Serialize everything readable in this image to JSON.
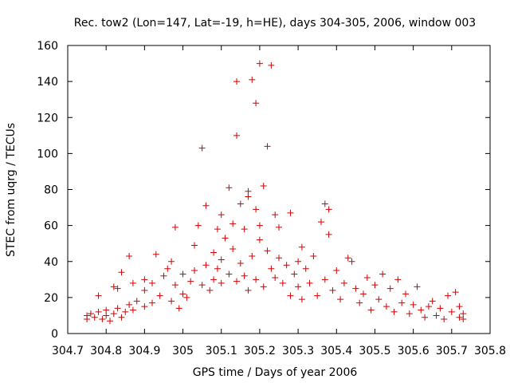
{
  "chart_data": {
    "type": "scatter",
    "title": "Rec. tow2 (Lon=147, Lat=-19, h=HE), days 304-305, 2006, window 003",
    "xlabel": "GPS time / Days of year 2006",
    "ylabel": "STEC from uqrg / TECUs",
    "xlim": [
      304.7,
      305.8
    ],
    "ylim": [
      0,
      160
    ],
    "xticks": [
      304.7,
      304.8,
      304.9,
      305.0,
      305.1,
      305.2,
      305.3,
      305.4,
      305.5,
      305.6,
      305.7,
      305.8
    ],
    "xtick_labels": [
      "304.7",
      "304.8",
      "304.9",
      "305",
      "305.1",
      "305.2",
      "305.3",
      "305.4",
      "305.5",
      "305.6",
      "305.7",
      "305.8"
    ],
    "yticks": [
      0,
      20,
      40,
      60,
      80,
      100,
      120,
      140,
      160
    ],
    "ytick_labels": [
      "0",
      "20",
      "40",
      "60",
      "80",
      "100",
      "120",
      "140",
      "160"
    ],
    "grid": false,
    "marker": "+",
    "marker_color": "#d40000",
    "series": [
      {
        "name": "STEC",
        "points": [
          [
            304.75,
            8
          ],
          [
            304.75,
            10
          ],
          [
            304.76,
            11
          ],
          [
            304.77,
            9
          ],
          [
            304.78,
            12
          ],
          [
            304.79,
            8
          ],
          [
            304.8,
            10
          ],
          [
            304.8,
            13
          ],
          [
            304.81,
            7
          ],
          [
            304.82,
            11
          ],
          [
            304.83,
            14
          ],
          [
            304.84,
            9
          ],
          [
            304.85,
            12
          ],
          [
            304.86,
            16
          ],
          [
            304.87,
            13
          ],
          [
            304.88,
            18
          ],
          [
            304.78,
            21
          ],
          [
            304.82,
            26
          ],
          [
            304.84,
            34
          ],
          [
            304.86,
            43
          ],
          [
            304.83,
            25
          ],
          [
            304.87,
            28
          ],
          [
            304.9,
            15
          ],
          [
            304.9,
            24
          ],
          [
            304.9,
            30
          ],
          [
            304.92,
            17
          ],
          [
            304.92,
            28
          ],
          [
            304.93,
            44
          ],
          [
            304.94,
            21
          ],
          [
            304.95,
            32
          ],
          [
            304.96,
            36
          ],
          [
            304.97,
            18
          ],
          [
            304.97,
            40
          ],
          [
            304.98,
            27
          ],
          [
            304.98,
            59
          ],
          [
            304.99,
            14
          ],
          [
            305.0,
            22
          ],
          [
            305.0,
            33
          ],
          [
            305.01,
            20
          ],
          [
            305.02,
            29
          ],
          [
            305.03,
            35
          ],
          [
            305.03,
            49
          ],
          [
            305.04,
            60
          ],
          [
            305.05,
            27
          ],
          [
            305.05,
            103
          ],
          [
            305.06,
            38
          ],
          [
            305.06,
            71
          ],
          [
            305.07,
            24
          ],
          [
            305.08,
            30
          ],
          [
            305.08,
            45
          ],
          [
            305.09,
            36
          ],
          [
            305.09,
            58
          ],
          [
            305.1,
            28
          ],
          [
            305.1,
            41
          ],
          [
            305.1,
            66
          ],
          [
            305.11,
            53
          ],
          [
            305.12,
            33
          ],
          [
            305.12,
            81
          ],
          [
            305.13,
            47
          ],
          [
            305.13,
            61
          ],
          [
            305.14,
            29
          ],
          [
            305.14,
            110
          ],
          [
            305.14,
            140
          ],
          [
            305.15,
            39
          ],
          [
            305.15,
            72
          ],
          [
            305.16,
            32
          ],
          [
            305.16,
            58
          ],
          [
            305.17,
            24
          ],
          [
            305.17,
            76
          ],
          [
            305.17,
            79
          ],
          [
            305.18,
            43
          ],
          [
            305.18,
            141
          ],
          [
            305.19,
            30
          ],
          [
            305.19,
            69
          ],
          [
            305.19,
            128
          ],
          [
            305.2,
            52
          ],
          [
            305.2,
            60
          ],
          [
            305.2,
            150
          ],
          [
            305.21,
            82
          ],
          [
            305.21,
            26
          ],
          [
            305.22,
            104
          ],
          [
            305.22,
            46
          ],
          [
            305.23,
            36
          ],
          [
            305.23,
            149
          ],
          [
            305.24,
            66
          ],
          [
            305.24,
            31
          ],
          [
            305.25,
            42
          ],
          [
            305.25,
            59
          ],
          [
            305.26,
            28
          ],
          [
            305.27,
            38
          ],
          [
            305.28,
            67
          ],
          [
            305.28,
            21
          ],
          [
            305.29,
            33
          ],
          [
            305.3,
            40
          ],
          [
            305.3,
            26
          ],
          [
            305.31,
            48
          ],
          [
            305.31,
            19
          ],
          [
            305.32,
            36
          ],
          [
            305.33,
            28
          ],
          [
            305.34,
            43
          ],
          [
            305.35,
            21
          ],
          [
            305.36,
            62
          ],
          [
            305.37,
            72
          ],
          [
            305.37,
            30
          ],
          [
            305.38,
            55
          ],
          [
            305.38,
            69
          ],
          [
            305.39,
            24
          ],
          [
            305.4,
            35
          ],
          [
            305.41,
            19
          ],
          [
            305.42,
            28
          ],
          [
            305.43,
            42
          ],
          [
            305.44,
            40
          ],
          [
            305.45,
            25
          ],
          [
            305.46,
            17
          ],
          [
            305.47,
            22
          ],
          [
            305.48,
            31
          ],
          [
            305.49,
            13
          ],
          [
            305.5,
            27
          ],
          [
            305.51,
            19
          ],
          [
            305.52,
            33
          ],
          [
            305.53,
            15
          ],
          [
            305.54,
            25
          ],
          [
            305.55,
            12
          ],
          [
            305.56,
            30
          ],
          [
            305.57,
            17
          ],
          [
            305.58,
            22
          ],
          [
            305.59,
            11
          ],
          [
            305.6,
            16
          ],
          [
            305.61,
            26
          ],
          [
            305.62,
            13
          ],
          [
            305.63,
            9
          ],
          [
            305.64,
            15
          ],
          [
            305.65,
            18
          ],
          [
            305.66,
            10
          ],
          [
            305.67,
            14
          ],
          [
            305.68,
            8
          ],
          [
            305.69,
            21
          ],
          [
            305.7,
            12
          ],
          [
            305.71,
            23
          ],
          [
            305.72,
            9
          ],
          [
            305.72,
            15
          ],
          [
            305.73,
            8
          ],
          [
            305.73,
            11
          ]
        ]
      }
    ]
  }
}
